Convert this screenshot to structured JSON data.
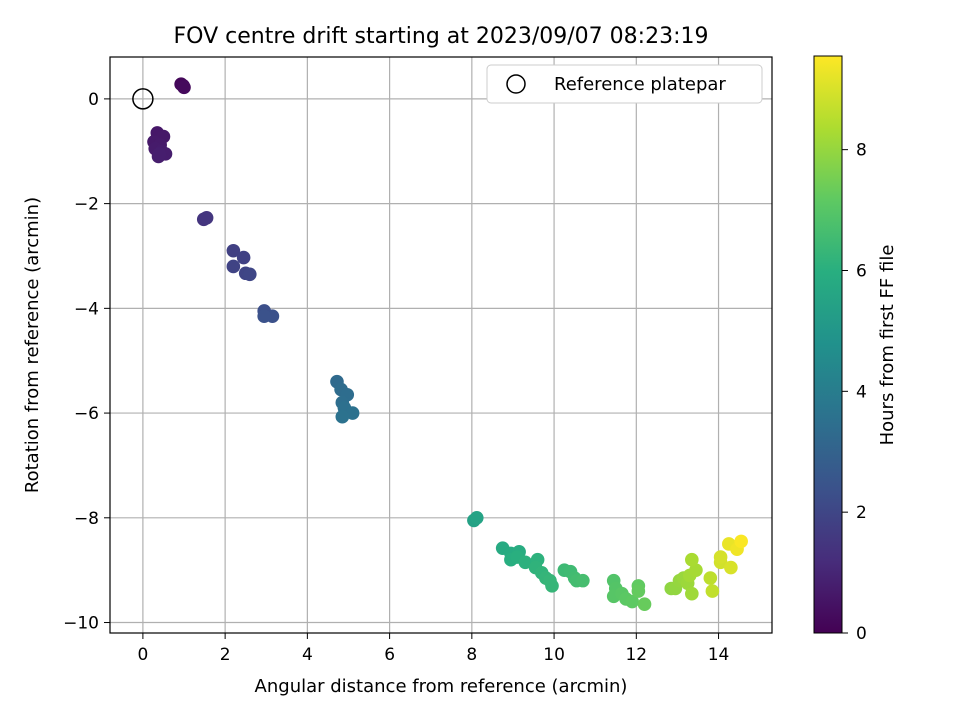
{
  "chart_data": {
    "type": "scatter",
    "title": "FOV centre drift starting at 2023/09/07 08:23:19",
    "xlabel": "Angular distance from reference (arcmin)",
    "ylabel": "Rotation from reference (arcmin)",
    "xlim": [
      -0.8,
      15.3
    ],
    "ylim": [
      -10.2,
      0.8
    ],
    "xticks": [
      0,
      2,
      4,
      6,
      8,
      10,
      12,
      14
    ],
    "yticks": [
      0,
      -2,
      -4,
      -6,
      -8,
      -10
    ],
    "grid": true,
    "legend": {
      "location": "top-right",
      "entries": [
        "Reference platepar"
      ]
    },
    "reference_point": {
      "x": 0,
      "y": 0
    },
    "colorbar": {
      "label": "Hours from first FF file",
      "colormap": "viridis",
      "range": [
        0,
        9.55
      ],
      "ticks": [
        0,
        2,
        4,
        6,
        8
      ]
    },
    "points": [
      {
        "x": 0.93,
        "y": 0.28,
        "c": 0.15
      },
      {
        "x": 0.98,
        "y": 0.25,
        "c": 0.2
      },
      {
        "x": 1.0,
        "y": 0.22,
        "c": 0.25
      },
      {
        "x": 0.35,
        "y": -0.65,
        "c": 0.6
      },
      {
        "x": 0.5,
        "y": -0.72,
        "c": 0.62
      },
      {
        "x": 0.27,
        "y": -0.82,
        "c": 0.65
      },
      {
        "x": 0.42,
        "y": -0.88,
        "c": 0.68
      },
      {
        "x": 0.3,
        "y": -0.95,
        "c": 0.7
      },
      {
        "x": 0.45,
        "y": -1.0,
        "c": 0.72
      },
      {
        "x": 0.55,
        "y": -1.05,
        "c": 0.75
      },
      {
        "x": 0.38,
        "y": -1.1,
        "c": 0.78
      },
      {
        "x": 0.4,
        "y": -1.05,
        "c": 0.8
      },
      {
        "x": 1.48,
        "y": -2.3,
        "c": 1.45
      },
      {
        "x": 1.55,
        "y": -2.27,
        "c": 1.5
      },
      {
        "x": 2.2,
        "y": -2.9,
        "c": 1.8
      },
      {
        "x": 2.45,
        "y": -3.03,
        "c": 1.85
      },
      {
        "x": 2.2,
        "y": -3.2,
        "c": 1.9
      },
      {
        "x": 2.5,
        "y": -3.33,
        "c": 1.95
      },
      {
        "x": 2.6,
        "y": -3.35,
        "c": 2.0
      },
      {
        "x": 2.95,
        "y": -4.05,
        "c": 2.3
      },
      {
        "x": 3.15,
        "y": -4.15,
        "c": 2.35
      },
      {
        "x": 2.95,
        "y": -4.15,
        "c": 2.4
      },
      {
        "x": 4.72,
        "y": -5.4,
        "c": 3.3
      },
      {
        "x": 4.82,
        "y": -5.55,
        "c": 3.35
      },
      {
        "x": 4.97,
        "y": -5.65,
        "c": 3.4
      },
      {
        "x": 4.85,
        "y": -5.8,
        "c": 3.45
      },
      {
        "x": 4.9,
        "y": -5.9,
        "c": 3.5
      },
      {
        "x": 5.1,
        "y": -6.0,
        "c": 3.55
      },
      {
        "x": 4.85,
        "y": -6.07,
        "c": 3.6
      },
      {
        "x": 8.05,
        "y": -8.05,
        "c": 5.45
      },
      {
        "x": 8.12,
        "y": -8.0,
        "c": 5.5
      },
      {
        "x": 8.75,
        "y": -8.58,
        "c": 5.8
      },
      {
        "x": 8.95,
        "y": -8.68,
        "c": 5.85
      },
      {
        "x": 9.15,
        "y": -8.65,
        "c": 5.9
      },
      {
        "x": 8.95,
        "y": -8.8,
        "c": 5.95
      },
      {
        "x": 9.1,
        "y": -8.75,
        "c": 6.0
      },
      {
        "x": 9.3,
        "y": -8.85,
        "c": 6.05
      },
      {
        "x": 9.6,
        "y": -8.8,
        "c": 6.1
      },
      {
        "x": 9.55,
        "y": -8.95,
        "c": 6.15
      },
      {
        "x": 9.7,
        "y": -9.05,
        "c": 6.2
      },
      {
        "x": 9.8,
        "y": -9.15,
        "c": 6.25
      },
      {
        "x": 9.95,
        "y": -9.3,
        "c": 6.3
      },
      {
        "x": 9.9,
        "y": -9.2,
        "c": 6.3
      },
      {
        "x": 10.25,
        "y": -9.0,
        "c": 6.45
      },
      {
        "x": 10.4,
        "y": -9.03,
        "c": 6.5
      },
      {
        "x": 10.5,
        "y": -9.15,
        "c": 6.55
      },
      {
        "x": 10.55,
        "y": -9.2,
        "c": 6.6
      },
      {
        "x": 10.7,
        "y": -9.2,
        "c": 6.65
      },
      {
        "x": 11.45,
        "y": -9.2,
        "c": 6.9
      },
      {
        "x": 11.5,
        "y": -9.35,
        "c": 6.95
      },
      {
        "x": 11.45,
        "y": -9.5,
        "c": 7.0
      },
      {
        "x": 11.65,
        "y": -9.45,
        "c": 7.05
      },
      {
        "x": 11.75,
        "y": -9.55,
        "c": 7.1
      },
      {
        "x": 11.9,
        "y": -9.6,
        "c": 7.15
      },
      {
        "x": 12.05,
        "y": -9.3,
        "c": 7.2
      },
      {
        "x": 12.05,
        "y": -9.4,
        "c": 7.25
      },
      {
        "x": 12.2,
        "y": -9.65,
        "c": 7.3
      },
      {
        "x": 12.85,
        "y": -9.35,
        "c": 7.9
      },
      {
        "x": 12.95,
        "y": -9.35,
        "c": 7.95
      },
      {
        "x": 13.05,
        "y": -9.2,
        "c": 8.0
      },
      {
        "x": 13.15,
        "y": -9.15,
        "c": 8.05
      },
      {
        "x": 13.25,
        "y": -9.25,
        "c": 8.1
      },
      {
        "x": 13.35,
        "y": -9.45,
        "c": 8.15
      },
      {
        "x": 13.3,
        "y": -9.1,
        "c": 8.2
      },
      {
        "x": 13.45,
        "y": -9.0,
        "c": 8.25
      },
      {
        "x": 13.35,
        "y": -8.8,
        "c": 8.3
      },
      {
        "x": 13.8,
        "y": -9.15,
        "c": 8.6
      },
      {
        "x": 13.85,
        "y": -9.4,
        "c": 8.65
      },
      {
        "x": 14.05,
        "y": -8.85,
        "c": 8.9
      },
      {
        "x": 14.05,
        "y": -8.75,
        "c": 8.95
      },
      {
        "x": 14.3,
        "y": -8.95,
        "c": 9.0
      },
      {
        "x": 14.25,
        "y": -8.5,
        "c": 9.25
      },
      {
        "x": 14.45,
        "y": -8.6,
        "c": 9.35
      },
      {
        "x": 14.55,
        "y": -8.45,
        "c": 9.5
      }
    ]
  }
}
